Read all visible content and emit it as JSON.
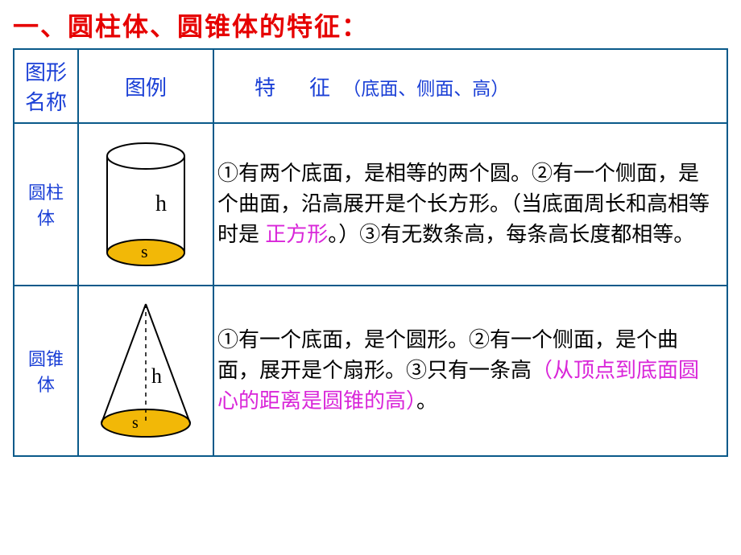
{
  "colors": {
    "title_red": "#e60000",
    "header_blue": "#1a3fd6",
    "table_border": "#0a5a8a",
    "body_text": "#000000",
    "highlight_magenta": "#d926d9",
    "shape_fill": "#f2b807",
    "shape_stroke": "#000000"
  },
  "title": "一、圆柱体、圆锥体的特征：",
  "headers": {
    "name_l1": "图形",
    "name_l2": "名称",
    "diagram": "图例",
    "feature_main": "特　征",
    "feature_sub": "（底面、侧面、高）"
  },
  "rows": [
    {
      "name": "圆柱体",
      "diagram": {
        "type": "cylinder",
        "h_label": "h",
        "s_label": "s"
      },
      "features": [
        {
          "segs": [
            {
              "t": "①有两个底面，是相等的两个圆。"
            }
          ]
        },
        {
          "segs": [
            {
              "t": "②有一个侧面，是个曲面，沿高展开是个长方形。（当底面周长和高相等时是 "
            },
            {
              "t": "正方形",
              "hl": true
            },
            {
              "t": "。）"
            }
          ]
        },
        {
          "segs": [
            {
              "t": "③有无数条高，每条高长度都相等。"
            }
          ]
        }
      ]
    },
    {
      "name": "圆锥体",
      "diagram": {
        "type": "cone",
        "h_label": "h",
        "s_label": "s"
      },
      "features": [
        {
          "segs": [
            {
              "t": "①有一个底面，是个圆形。"
            }
          ]
        },
        {
          "segs": [
            {
              "t": "②有一个侧面，是个曲面，展开是个扇形。"
            }
          ]
        },
        {
          "segs": [
            {
              "t": "③只有一条高"
            },
            {
              "t": "（从顶点到底面圆心的距离是圆锥的高）",
              "hl": true
            },
            {
              "t": "。"
            }
          ]
        }
      ]
    }
  ]
}
